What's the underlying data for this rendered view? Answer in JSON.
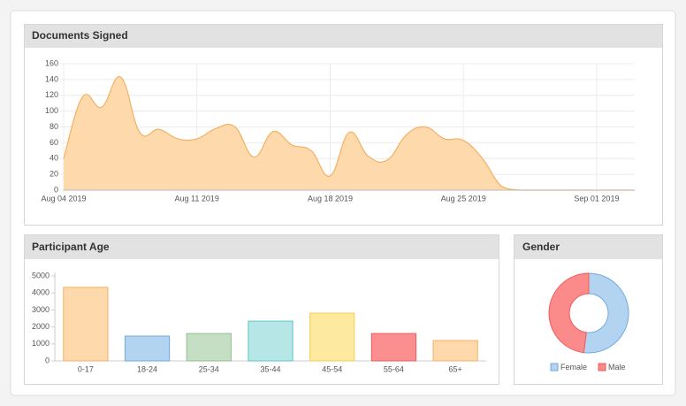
{
  "chart_data": [
    {
      "type": "area",
      "title": "Documents Signed",
      "x": [
        "2019-08-04",
        "2019-08-05",
        "2019-08-06",
        "2019-08-07",
        "2019-08-08",
        "2019-08-09",
        "2019-08-10",
        "2019-08-11",
        "2019-08-12",
        "2019-08-13",
        "2019-08-14",
        "2019-08-15",
        "2019-08-16",
        "2019-08-17",
        "2019-08-18",
        "2019-08-19",
        "2019-08-20",
        "2019-08-21",
        "2019-08-22",
        "2019-08-23",
        "2019-08-24",
        "2019-08-25",
        "2019-08-26",
        "2019-08-27",
        "2019-08-28",
        "2019-08-29",
        "2019-08-30",
        "2019-08-31",
        "2019-09-01",
        "2019-09-02",
        "2019-09-03"
      ],
      "values": [
        40,
        118,
        105,
        143,
        73,
        77,
        65,
        65,
        78,
        80,
        42,
        74,
        57,
        50,
        18,
        73,
        43,
        38,
        70,
        80,
        65,
        63,
        40,
        5,
        0,
        0,
        0,
        0,
        0,
        0,
        0
      ],
      "color": "#f5b063",
      "fill": "#fdd9ac",
      "xlim": [
        "2019-08-04",
        "2019-09-03"
      ],
      "xticks": [
        {
          "value": "2019-08-04",
          "label": "Aug 04 2019"
        },
        {
          "value": "2019-08-11",
          "label": "Aug 11 2019"
        },
        {
          "value": "2019-08-18",
          "label": "Aug 18 2019"
        },
        {
          "value": "2019-08-25",
          "label": "Aug 25 2019"
        },
        {
          "value": "2019-09-01",
          "label": "Sep 01 2019"
        }
      ],
      "ylim": [
        0,
        160
      ],
      "yticks": [
        0,
        20,
        40,
        60,
        80,
        100,
        120,
        140,
        160
      ],
      "grid": true
    },
    {
      "type": "bar",
      "title": "Participant Age",
      "categories": [
        "0-17",
        "18-24",
        "25-34",
        "35-44",
        "45-54",
        "55-64",
        "65+"
      ],
      "values": [
        4330,
        1460,
        1610,
        2340,
        2810,
        1610,
        1200
      ],
      "colors": [
        "#fdd9ac",
        "#b3d4f0",
        "#c5dfc4",
        "#b7e6e6",
        "#fde9a0",
        "#fb8f8f",
        "#fdd9ac"
      ],
      "border_colors": [
        "#f5b063",
        "#6fa9de",
        "#8fbf8d",
        "#5ec6c6",
        "#f6cf4d",
        "#f05a5a",
        "#f5b063"
      ],
      "ylim": [
        0,
        5000
      ],
      "yticks": [
        0,
        1000,
        2000,
        3000,
        4000,
        5000
      ]
    },
    {
      "type": "doughnut",
      "title": "Gender",
      "categories": [
        "Female",
        "Male"
      ],
      "values": [
        52,
        48
      ],
      "colors": [
        "#b3d4f0",
        "#fb8a8a"
      ],
      "border_colors": [
        "#6fa9de",
        "#f05a5a"
      ],
      "legend": "bottom"
    }
  ]
}
